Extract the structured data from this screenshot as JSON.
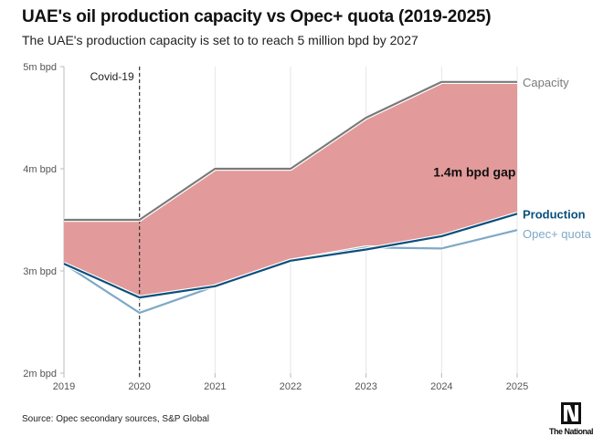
{
  "chart_data": {
    "type": "area",
    "title": "UAE's oil production capacity vs Opec+ quota (2019-2025)",
    "subtitle": "The UAE's production capacity is set to to reach 5 million bpd by 2027",
    "x": [
      2019,
      2020,
      2021,
      2022,
      2023,
      2024,
      2025
    ],
    "x_tick_labels": [
      "2019",
      "2020",
      "2021",
      "2022",
      "2023",
      "2024",
      "2025"
    ],
    "y_tick_labels": [
      "2m bpd",
      "3m bpd",
      "4m bpd",
      "5m bpd"
    ],
    "y_ticks": [
      2,
      3,
      4,
      5
    ],
    "ylim": [
      2,
      5
    ],
    "yunit": "million bpd",
    "grid": "vertical",
    "series": [
      {
        "name": "Capacity",
        "values": [
          3.5,
          3.5,
          4.0,
          4.0,
          4.5,
          4.85,
          4.85
        ],
        "color": "#7a7a7a"
      },
      {
        "name": "Production",
        "values": [
          3.07,
          2.74,
          2.85,
          3.1,
          3.21,
          3.34,
          3.56
        ],
        "color": "#0b4f7c"
      },
      {
        "name": "Opec+ quota",
        "values": [
          3.07,
          2.59,
          2.85,
          3.1,
          3.23,
          3.22,
          3.4
        ],
        "color": "#7fa9c6"
      }
    ],
    "gap_fill_color": "#e29a9a",
    "annotations": [
      {
        "text": "Covid-19",
        "x": 2020
      },
      {
        "text": "1.4m bpd gap",
        "x": 2024.5
      }
    ]
  },
  "source": "Source: Opec secondary sources, S&P Global",
  "logo_text": "The National"
}
